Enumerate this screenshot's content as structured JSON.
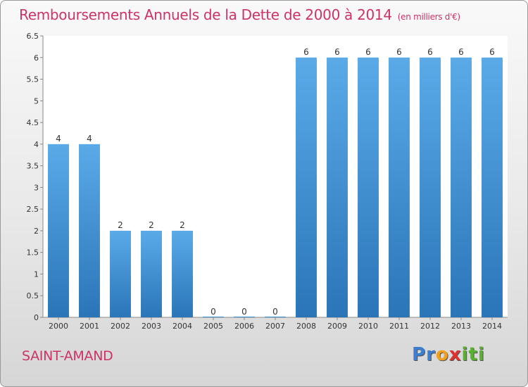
{
  "page": {
    "title": "Remboursements Annuels de la Dette de 2000 à 2014",
    "unit": "(en milliers d'€)",
    "commune": "SAINT-AMAND",
    "logo": {
      "letters": [
        "P",
        "r",
        "o",
        "x",
        "i",
        "t",
        "i"
      ],
      "colors": [
        "#3a7fd0",
        "#3a7fd0",
        "#f0a020",
        "#e03030",
        "#5ab030",
        "#5ab030",
        "#5ab030"
      ]
    }
  },
  "chart_data": {
    "type": "bar",
    "categories": [
      "2000",
      "2001",
      "2002",
      "2003",
      "2004",
      "2005",
      "2006",
      "2007",
      "2008",
      "2009",
      "2010",
      "2011",
      "2012",
      "2013",
      "2014"
    ],
    "values": [
      4,
      4,
      2,
      2,
      2,
      0,
      0,
      0,
      6,
      6,
      6,
      6,
      6,
      6,
      6
    ],
    "data_labels": [
      "4",
      "4",
      "2",
      "2",
      "2",
      "0",
      "0",
      "0",
      "6",
      "6",
      "6",
      "6",
      "6",
      "6",
      "6"
    ],
    "ylim": [
      0,
      6.5
    ],
    "yticks": [
      0,
      0.5,
      1,
      1.5,
      2,
      2.5,
      3,
      3.5,
      4,
      4.5,
      5,
      5.5,
      6,
      6.5
    ],
    "ytick_labels": [
      "0",
      "0.5",
      "1",
      "1.5",
      "2",
      "2.5",
      "3",
      "3.5",
      "4",
      "4.5",
      "5",
      "5.5",
      "6",
      "6.5"
    ],
    "bar_color": "#3a8fd4",
    "grid": false
  }
}
